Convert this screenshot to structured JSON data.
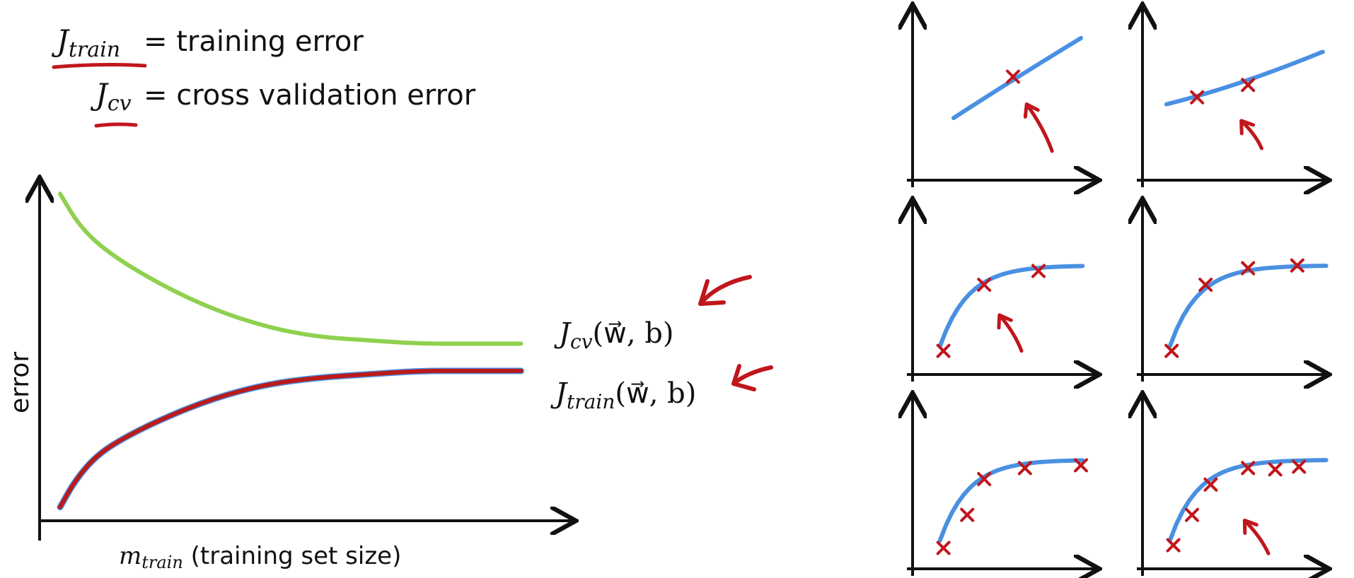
{
  "legend": {
    "train_symbol": "J",
    "train_subscript": "train",
    "train_text": "= training error",
    "cv_symbol": "J",
    "cv_subscript": "cv",
    "cv_text": "= cross validation error"
  },
  "chart_data": [
    {
      "type": "line",
      "title": "",
      "ylabel": "error",
      "xlabel_symbol": "m",
      "xlabel_subscript": "train",
      "xlabel_text": " (training set size)",
      "grid": false,
      "series": [
        {
          "name_symbol": "J",
          "name_subscript": "cv",
          "name_args": "(w⃗, b)",
          "color": "#8fd14f",
          "x": [
            1,
            1.4,
            2,
            3,
            4,
            5,
            6,
            7,
            8,
            9,
            10
          ],
          "y": [
            0.96,
            0.86,
            0.78,
            0.69,
            0.62,
            0.57,
            0.54,
            0.53,
            0.52,
            0.52,
            0.52
          ]
        },
        {
          "name_symbol": "J",
          "name_subscript": "train",
          "name_args": "(w⃗, b)",
          "color": "#bb1a1a",
          "x": [
            1,
            1.3,
            1.7,
            2.2,
            3,
            4,
            5,
            6,
            7,
            8,
            9,
            10
          ],
          "y": [
            0.04,
            0.12,
            0.19,
            0.24,
            0.3,
            0.36,
            0.4,
            0.42,
            0.43,
            0.44,
            0.44,
            0.44
          ]
        }
      ],
      "xlim": [
        0.6,
        10.6
      ],
      "ylim": [
        0,
        1
      ]
    },
    {
      "type": "scatter",
      "grid": false,
      "panels": [
        {
          "points": 1,
          "x": [
            0.55
          ],
          "y": [
            0.7
          ],
          "curve": "linear",
          "arrow": true
        },
        {
          "points": 2,
          "x": [
            0.28,
            0.58
          ],
          "y": [
            0.55,
            0.64
          ],
          "curve": "linear",
          "arrow": true
        },
        {
          "points": 3,
          "x": [
            0.14,
            0.38,
            0.7
          ],
          "y": [
            0.12,
            0.6,
            0.7
          ],
          "curve": "log",
          "arrow": true
        },
        {
          "points": 4,
          "x": [
            0.13,
            0.33,
            0.58,
            0.87
          ],
          "y": [
            0.12,
            0.6,
            0.72,
            0.74
          ],
          "curve": "log",
          "arrow": false
        },
        {
          "points": 5,
          "x": [
            0.14,
            0.28,
            0.38,
            0.62,
            0.95
          ],
          "y": [
            0.1,
            0.34,
            0.6,
            0.68,
            0.7
          ],
          "curve": "log",
          "arrow": false
        },
        {
          "points": 6,
          "x": [
            0.14,
            0.25,
            0.36,
            0.58,
            0.74,
            0.88
          ],
          "y": [
            0.12,
            0.34,
            0.56,
            0.68,
            0.67,
            0.69
          ],
          "curve": "log",
          "arrow": true
        }
      ]
    }
  ],
  "colors": {
    "ink": "#111111",
    "annotation_red": "#c0161c",
    "fit_blue": "#4a90e2",
    "cv_green": "#8fd14f",
    "train_red": "#bb1a1a"
  }
}
